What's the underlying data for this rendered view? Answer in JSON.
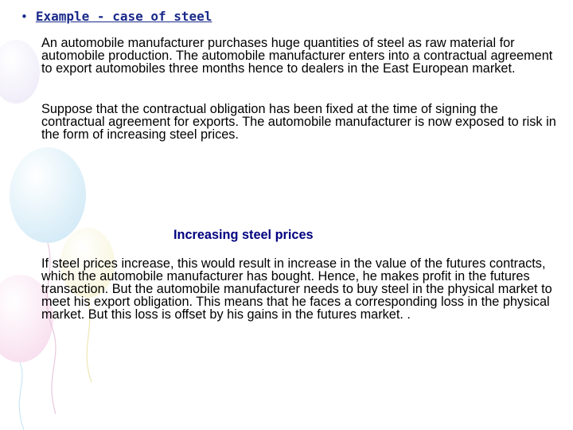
{
  "slide": {
    "heading": "Example - case of steel",
    "paragraph_1": "An automobile manufacturer purchases huge quantities of steel as raw material for automobile production. The automobile manufacturer enters into a contractual agreement to export automobiles three months hence to dealers in the East European market.",
    "paragraph_2": "Suppose that the contractual obligation has been fixed at the time of signing the contractual agreement for exports. The automobile manufacturer is now exposed to risk in the form of increasing steel prices.",
    "subheading": "Increasing steel prices",
    "paragraph_3": "If steel prices increase, this would result in increase in the value of the futures contracts, which the automobile manufacturer has bought. Hence, he makes profit in the futures transaction. But the automobile manufacturer needs to buy steel in the physical market to meet his export obligation. This means that he faces a corresponding loss in the physical market.  But this loss is offset by his gains in the futures market. ."
  },
  "colors": {
    "heading": "#1a2a8a",
    "subheading": "#000080",
    "body_text": "#000000"
  }
}
